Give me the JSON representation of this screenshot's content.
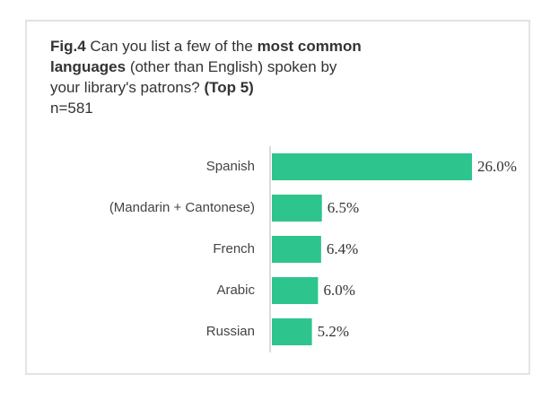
{
  "chart_data": {
    "type": "barh",
    "title": [
      [
        {
          "text": "Fig.4",
          "bold": true
        },
        {
          "text": " Can you list a few of the ",
          "bold": false
        },
        {
          "text": "most common",
          "bold": true
        }
      ],
      [
        {
          "text": "languages",
          "bold": true
        },
        {
          "text": " (other than English) spoken by",
          "bold": false
        }
      ],
      [
        {
          "text": "your library's patrons? ",
          "bold": false
        },
        {
          "text": "(Top 5)",
          "bold": true
        }
      ]
    ],
    "subtitle": "n=581",
    "categories": [
      "Spanish",
      "(Mandarin + Cantonese)",
      "French",
      "Arabic",
      "Russian"
    ],
    "values": [
      26.0,
      6.5,
      6.4,
      6.0,
      5.2
    ],
    "value_labels": [
      "26.0%",
      "6.5%",
      "6.4%",
      "6.0%",
      "5.2%"
    ],
    "color": "#2dc58d"
  }
}
